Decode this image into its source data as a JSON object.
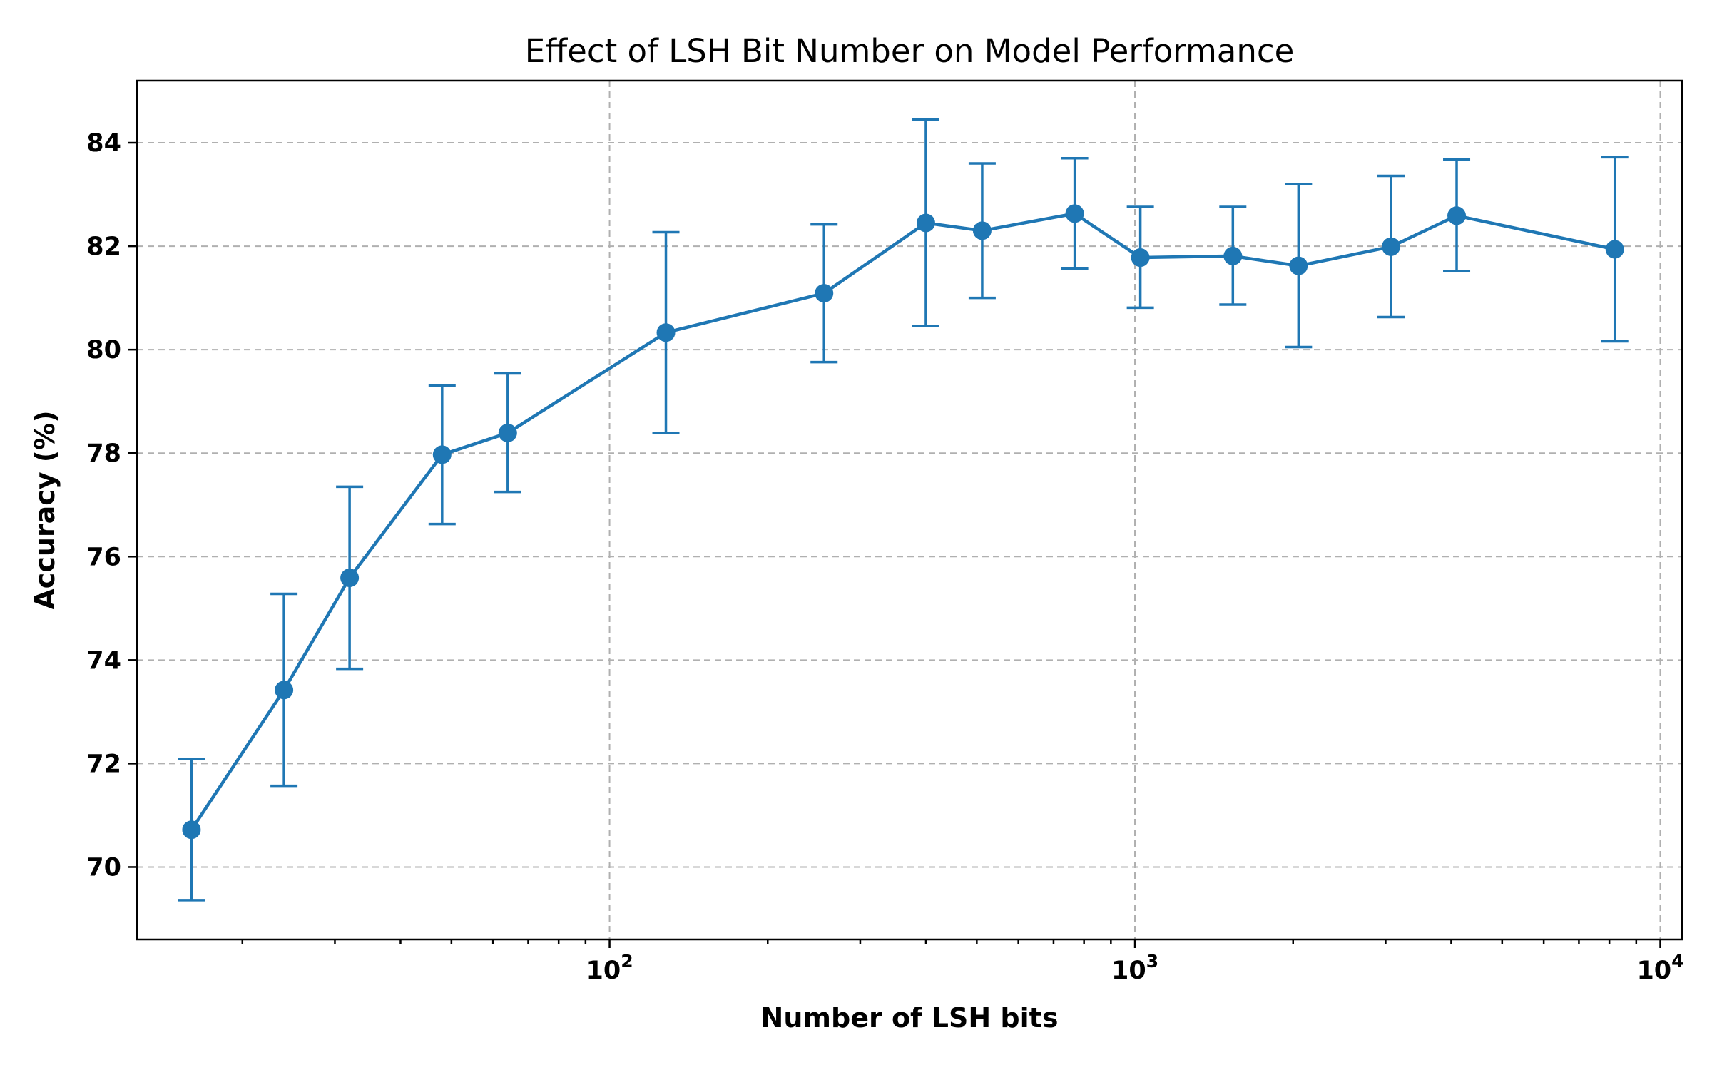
{
  "chart_data": {
    "type": "line",
    "title": "Effect of LSH Bit Number on Model Performance",
    "xlabel": "Number of LSH bits",
    "ylabel": "Accuracy (%)",
    "xscale": "log",
    "xlim": [
      12.6,
      11000
    ],
    "ylim": [
      68.6,
      85.2
    ],
    "x_major_ticks": [
      {
        "value": 100,
        "base": "10",
        "exp": "2"
      },
      {
        "value": 1000,
        "base": "10",
        "exp": "3"
      },
      {
        "value": 10000,
        "base": "10",
        "exp": "4"
      }
    ],
    "y_ticks": [
      70,
      72,
      74,
      76,
      78,
      80,
      82,
      84
    ],
    "grid": true,
    "color": "#1f77b4",
    "series": [
      {
        "x": [
          16,
          24,
          32,
          48,
          64,
          128,
          256,
          400,
          512,
          768,
          1024,
          1536,
          2048,
          3072,
          4096,
          8192
        ],
        "values": [
          70.72,
          73.42,
          75.59,
          77.97,
          78.39,
          80.33,
          81.09,
          82.45,
          82.3,
          82.63,
          81.78,
          81.81,
          81.62,
          81.99,
          82.59,
          81.94
        ],
        "lower": [
          69.36,
          71.57,
          73.83,
          76.63,
          77.25,
          78.39,
          79.76,
          80.46,
          81.0,
          81.57,
          80.81,
          80.87,
          80.05,
          80.63,
          81.52,
          80.16
        ],
        "upper": [
          72.09,
          75.28,
          77.35,
          79.31,
          79.54,
          82.27,
          82.42,
          84.45,
          83.6,
          83.7,
          82.76,
          82.76,
          83.2,
          83.36,
          83.68,
          83.72
        ]
      }
    ]
  }
}
